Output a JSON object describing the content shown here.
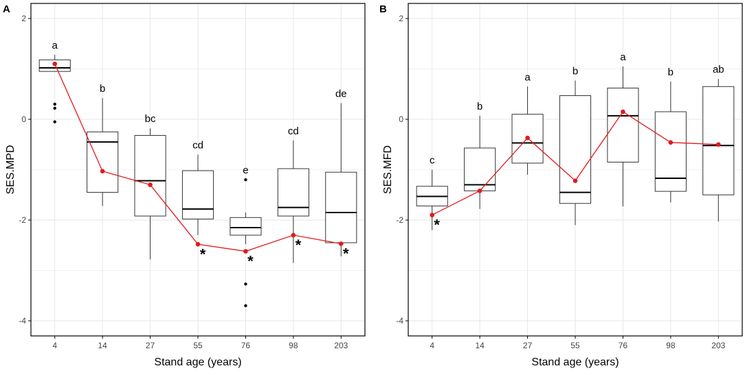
{
  "colors": {
    "mean_line": "#e3191c",
    "grid": "#e6e6e6",
    "axis": "#000000",
    "box": "#333333"
  },
  "chart_data": [
    {
      "type": "box",
      "panel_label": "A",
      "xlabel": "Stand age (years)",
      "ylabel": "SES.MPD",
      "ylim": [
        -4.3,
        2.3
      ],
      "yticks": [
        -4,
        -2,
        0,
        2
      ],
      "yticks_labels": [
        "-4",
        "-2",
        "0",
        "2"
      ],
      "grid": true,
      "categories": [
        "4",
        "14",
        "27",
        "55",
        "76",
        "98",
        "203"
      ],
      "boxes": [
        {
          "q1": 0.95,
          "median": 1.02,
          "q3": 1.18,
          "whisker_low": 0.95,
          "whisker_high": 1.28,
          "outliers": [
            0.3,
            0.22,
            -0.05
          ]
        },
        {
          "q1": -1.45,
          "median": -0.45,
          "q3": -0.25,
          "whisker_low": -1.72,
          "whisker_high": 0.42,
          "outliers": []
        },
        {
          "q1": -1.92,
          "median": -1.22,
          "q3": -0.32,
          "whisker_low": -2.78,
          "whisker_high": -0.18,
          "outliers": []
        },
        {
          "q1": -1.98,
          "median": -1.78,
          "q3": -1.02,
          "whisker_low": -2.3,
          "whisker_high": -0.7,
          "outliers": []
        },
        {
          "q1": -2.3,
          "median": -2.15,
          "q3": -1.95,
          "whisker_low": -2.48,
          "whisker_high": -1.85,
          "outliers": [
            -1.2,
            -3.27,
            -3.7
          ]
        },
        {
          "q1": -1.92,
          "median": -1.75,
          "q3": -0.98,
          "whisker_low": -2.85,
          "whisker_high": -0.42,
          "outliers": []
        },
        {
          "q1": -2.45,
          "median": -1.85,
          "q3": -1.05,
          "whisker_low": -2.72,
          "whisker_high": 0.32,
          "outliers": []
        }
      ],
      "means": [
        1.1,
        -1.03,
        -1.3,
        -2.48,
        -2.62,
        -2.3,
        -2.47
      ],
      "letters": [
        "a",
        "b",
        "bc",
        "cd",
        "e",
        "cd",
        "de"
      ],
      "significant": [
        false,
        false,
        false,
        true,
        true,
        true,
        true
      ],
      "asterisk": "*"
    },
    {
      "type": "box",
      "panel_label": "B",
      "xlabel": "Stand age (years)",
      "ylabel": "SES.MFD",
      "ylim": [
        -4.3,
        2.3
      ],
      "yticks": [
        -4,
        -2,
        0,
        2
      ],
      "yticks_labels": [
        "-4",
        "-2",
        "0",
        "2"
      ],
      "grid": true,
      "categories": [
        "4",
        "14",
        "27",
        "55",
        "76",
        "98",
        "203"
      ],
      "boxes": [
        {
          "q1": -1.72,
          "median": -1.53,
          "q3": -1.33,
          "whisker_low": -2.2,
          "whisker_high": -1.0,
          "outliers": []
        },
        {
          "q1": -1.42,
          "median": -1.3,
          "q3": -0.57,
          "whisker_low": -1.78,
          "whisker_high": 0.07,
          "outliers": []
        },
        {
          "q1": -0.87,
          "median": -0.47,
          "q3": 0.1,
          "whisker_low": -1.1,
          "whisker_high": 0.65,
          "outliers": []
        },
        {
          "q1": -1.67,
          "median": -1.45,
          "q3": 0.47,
          "whisker_low": -2.1,
          "whisker_high": 0.77,
          "outliers": []
        },
        {
          "q1": -0.85,
          "median": 0.07,
          "q3": 0.62,
          "whisker_low": -1.73,
          "whisker_high": 1.05,
          "outliers": []
        },
        {
          "q1": -1.43,
          "median": -1.17,
          "q3": 0.15,
          "whisker_low": -1.65,
          "whisker_high": 0.75,
          "outliers": []
        },
        {
          "q1": -1.5,
          "median": -0.52,
          "q3": 0.65,
          "whisker_low": -2.03,
          "whisker_high": 0.8,
          "outliers": []
        }
      ],
      "means": [
        -1.9,
        -1.42,
        -0.37,
        -1.22,
        0.15,
        -0.46,
        -0.5
      ],
      "letters": [
        "c",
        "b",
        "a",
        "b",
        "a",
        "b",
        "ab"
      ],
      "significant": [
        true,
        false,
        false,
        false,
        false,
        false,
        false
      ],
      "asterisk": "*"
    }
  ]
}
